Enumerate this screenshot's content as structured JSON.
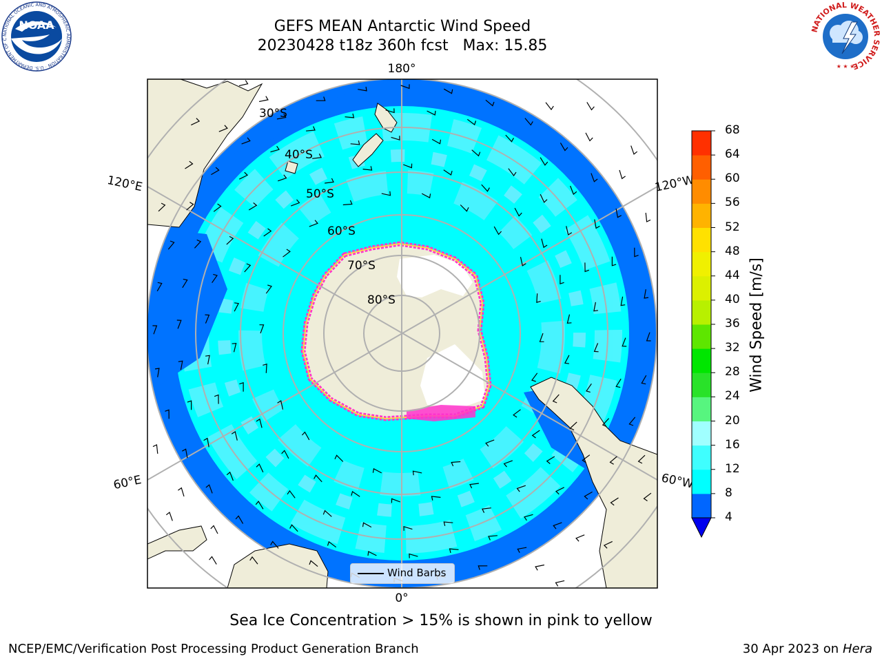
{
  "title": {
    "line1": "GEFS MEAN Antarctic Wind Speed",
    "line2": "20230428 t18z 360h fcst   Max: 15.85"
  },
  "map": {
    "projection": "south-polar-stereographic",
    "longitude_labels": {
      "top": "180°",
      "bottom": "0°",
      "upper_left": "120°E",
      "upper_right": "120°W",
      "lower_left": "60°E",
      "lower_right": "60°W"
    },
    "latitude_labels": [
      "30°S",
      "40°S",
      "50°S",
      "60°S",
      "70°S",
      "80°S"
    ],
    "legend_label": "Wind Barbs"
  },
  "colorbar": {
    "label": "Wind Speed [m/s]",
    "ticks": [
      "4",
      "8",
      "12",
      "16",
      "20",
      "24",
      "28",
      "32",
      "36",
      "40",
      "44",
      "48",
      "52",
      "56",
      "60",
      "64",
      "68"
    ],
    "colors": [
      "#0066ff",
      "#00ffff",
      "#3ffefe",
      "#a0ffff",
      "#57f57f",
      "#29e229",
      "#00e600",
      "#5ee600",
      "#b8f000",
      "#dcf000",
      "#f0f000",
      "#ffe100",
      "#ffb300",
      "#ff8c00",
      "#ff5f00",
      "#ff3000",
      "#ff0000"
    ],
    "under_color": "#0000ee"
  },
  "caption": "Sea Ice Concentration > 15% is shown in pink to yellow",
  "footer": {
    "credit": "NCEP/EMC/Verification Post Processing Product Generation Branch",
    "date_prefix": "30 Apr 2023 on ",
    "host": "Hera"
  },
  "logos": {
    "noaa": {
      "text": "NOAA",
      "ring_text": "NATIONAL OCEANIC AND ATMOSPHERIC ADMINISTRATION · U.S. DEPARTMENT OF COMMERCE"
    },
    "nws": {
      "ring_text": "NATIONAL WEATHER SERVICE"
    }
  },
  "colors": {
    "land": "#efedd9",
    "ice_shelf": "#ffffff",
    "sea_ice": "#ff33cc",
    "grid": "#b0b0b0"
  }
}
